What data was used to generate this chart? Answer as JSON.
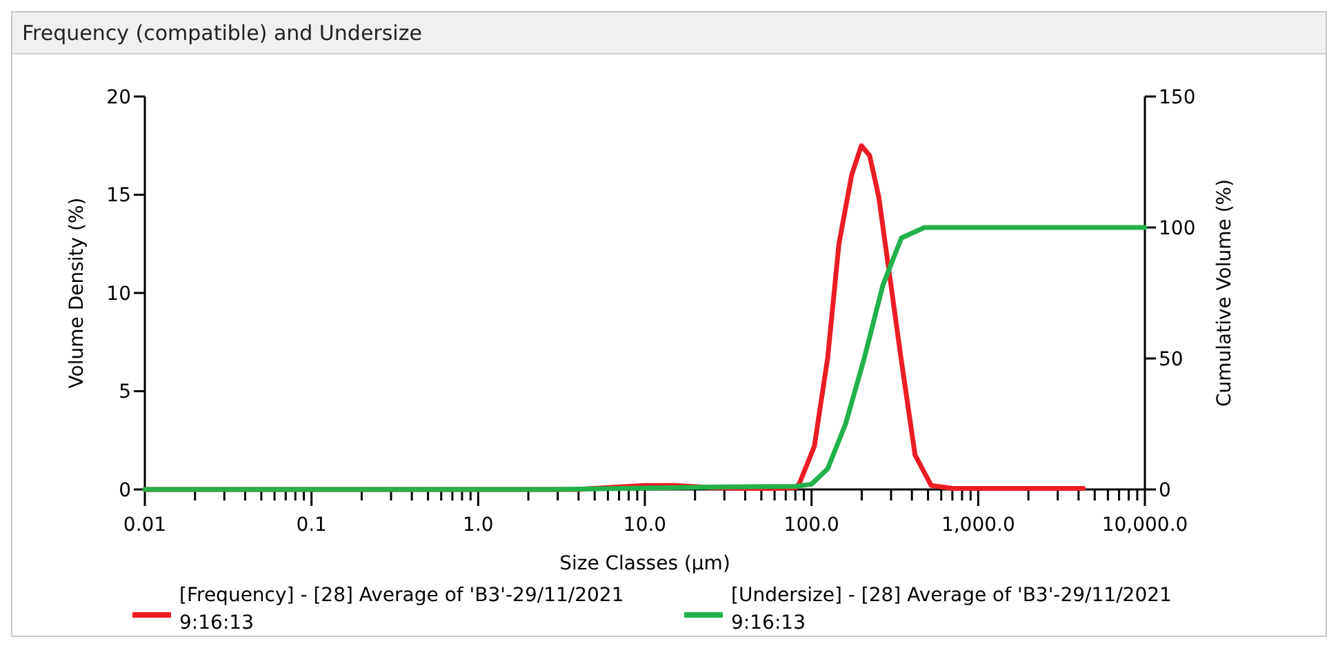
{
  "chart_data": {
    "type": "line",
    "title": "Frequency (compatible) and Undersize",
    "xlabel": "Size Classes (µm)",
    "ylabel": "Volume Density (%)",
    "y2label": "Cumulative Volume (%)",
    "log": "x",
    "grid": false,
    "legend": "bottom",
    "marker": "none",
    "line_style": "solid",
    "xlim": [
      0.01,
      10000
    ],
    "xticks": [
      {
        "value": 0.01,
        "label": "0.01"
      },
      {
        "value": 0.02,
        "label": null
      },
      {
        "value": 0.03,
        "label": null
      },
      {
        "value": 0.04,
        "label": null
      },
      {
        "value": 0.05,
        "label": null
      },
      {
        "value": 0.06,
        "label": null
      },
      {
        "value": 0.07,
        "label": null
      },
      {
        "value": 0.08,
        "label": null
      },
      {
        "value": 0.09,
        "label": null
      },
      {
        "value": 0.1,
        "label": "0.1"
      },
      {
        "value": 0.2,
        "label": null
      },
      {
        "value": 0.3,
        "label": null
      },
      {
        "value": 0.4,
        "label": null
      },
      {
        "value": 0.5,
        "label": null
      },
      {
        "value": 0.6,
        "label": null
      },
      {
        "value": 0.7,
        "label": null
      },
      {
        "value": 0.8,
        "label": null
      },
      {
        "value": 0.9,
        "label": null
      },
      {
        "value": 1,
        "label": "1.0"
      },
      {
        "value": 2,
        "label": null
      },
      {
        "value": 3,
        "label": null
      },
      {
        "value": 4,
        "label": null
      },
      {
        "value": 5,
        "label": null
      },
      {
        "value": 6,
        "label": null
      },
      {
        "value": 7,
        "label": null
      },
      {
        "value": 8,
        "label": null
      },
      {
        "value": 9,
        "label": null
      },
      {
        "value": 10,
        "label": "10.0"
      },
      {
        "value": 20,
        "label": null
      },
      {
        "value": 30,
        "label": null
      },
      {
        "value": 40,
        "label": null
      },
      {
        "value": 50,
        "label": null
      },
      {
        "value": 60,
        "label": null
      },
      {
        "value": 70,
        "label": null
      },
      {
        "value": 80,
        "label": null
      },
      {
        "value": 90,
        "label": null
      },
      {
        "value": 100,
        "label": "100.0"
      },
      {
        "value": 200,
        "label": null
      },
      {
        "value": 300,
        "label": null
      },
      {
        "value": 400,
        "label": null
      },
      {
        "value": 500,
        "label": null
      },
      {
        "value": 600,
        "label": null
      },
      {
        "value": 700,
        "label": null
      },
      {
        "value": 800,
        "label": null
      },
      {
        "value": 900,
        "label": null
      },
      {
        "value": 1000,
        "label": "1,000.0"
      },
      {
        "value": 2000,
        "label": null
      },
      {
        "value": 3000,
        "label": null
      },
      {
        "value": 4000,
        "label": null
      },
      {
        "value": 5000,
        "label": null
      },
      {
        "value": 6000,
        "label": null
      },
      {
        "value": 7000,
        "label": null
      },
      {
        "value": 8000,
        "label": null
      },
      {
        "value": 9000,
        "label": null
      },
      {
        "value": 10000,
        "label": "10,000.0"
      }
    ],
    "ylim": [
      0,
      20
    ],
    "yticks": [
      0,
      5,
      10,
      15,
      20
    ],
    "y2lim": [
      0,
      150
    ],
    "y2ticks": [
      0,
      50,
      100,
      150
    ],
    "series": [
      {
        "name": "[Frequency] - [28] Average of 'B3'-29/11/2021 9:16:13",
        "color": "#ec1c24",
        "x": [
          0.01,
          1,
          4,
          6,
          10,
          15,
          25,
          40,
          60,
          81,
          85,
          104,
          125,
          146,
          174,
          199,
          223,
          253,
          294,
          344,
          418,
          523,
          700,
          4270
        ],
        "values": [
          0,
          0,
          0,
          0.1,
          0.2,
          0.2,
          0.1,
          0.05,
          0.05,
          0.1,
          0.35,
          2.2,
          6.7,
          12.5,
          16.0,
          17.5,
          17.0,
          14.9,
          10.9,
          6.7,
          1.75,
          0.2,
          0.05,
          0.05
        ]
      },
      {
        "name": "[Undersize] - [28] Average of 'B3'-29/11/2021 9:16:13",
        "color": "#22b14c",
        "axis": "y2",
        "x": [
          0.01,
          3,
          10,
          30,
          80,
          100,
          125,
          160,
          207,
          268,
          346,
          476,
          10000
        ],
        "values": [
          0,
          0,
          0.5,
          1,
          1.2,
          2,
          7.9,
          25,
          50,
          78,
          96,
          100,
          100
        ]
      }
    ]
  }
}
